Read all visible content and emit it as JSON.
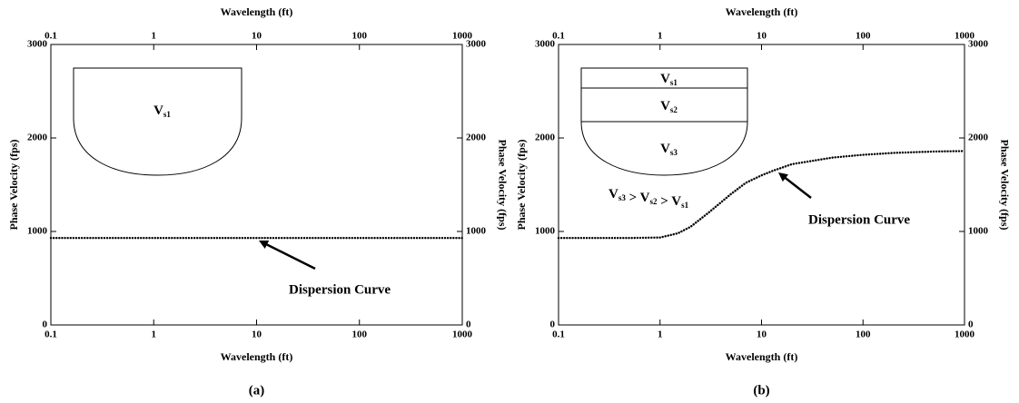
{
  "chart_data": [
    {
      "type": "line",
      "caption": "(a)",
      "xlabel": "Wavelength (ft)",
      "ylabel": "Phase Velocity (fps)",
      "y2label": "Phase Velocity (fps)",
      "log_x": true,
      "xlim": [
        0.1,
        1000
      ],
      "xticks": [
        0.1,
        1,
        10,
        100,
        1000
      ],
      "ylim": [
        0,
        3000
      ],
      "yticks": [
        0,
        1000,
        2000,
        3000
      ],
      "y2lim": [
        0,
        3000
      ],
      "y2ticks": [
        0,
        1000,
        2000,
        3000
      ],
      "color": "#000000",
      "x": [
        0.1,
        0.2,
        0.5,
        1,
        2,
        5,
        10,
        20,
        50,
        100,
        200,
        500,
        1000
      ],
      "values": [
        930,
        930,
        930,
        930,
        930,
        930,
        930,
        930,
        930,
        930,
        930,
        930,
        930
      ],
      "annotation": "Dispersion Curve",
      "layers": [
        {
          "text": "V",
          "sub": "s1"
        }
      ]
    },
    {
      "type": "line",
      "caption": "(b)",
      "xlabel": "Wavelength (ft)",
      "ylabel": "Phase Velocity (fps)",
      "y2label": "Phase Velocity (fps)",
      "log_x": true,
      "xlim": [
        0.1,
        1000
      ],
      "xticks": [
        0.1,
        1,
        10,
        100,
        1000
      ],
      "ylim": [
        0,
        3000
      ],
      "yticks": [
        0,
        1000,
        2000,
        3000
      ],
      "y2lim": [
        0,
        3000
      ],
      "y2ticks": [
        0,
        1000,
        2000,
        3000
      ],
      "color": "#000000",
      "x": [
        0.1,
        0.2,
        0.5,
        1,
        1.5,
        2,
        3,
        5,
        7,
        10,
        13,
        20,
        50,
        100,
        200,
        500,
        1000
      ],
      "values": [
        930,
        930,
        930,
        935,
        980,
        1050,
        1200,
        1400,
        1520,
        1600,
        1650,
        1720,
        1790,
        1820,
        1840,
        1855,
        1860
      ],
      "annotation": "Dispersion Curve",
      "layers": [
        {
          "text": "V",
          "sub": "s1"
        },
        {
          "text": "V",
          "sub": "s2"
        },
        {
          "text": "V",
          "sub": "s3"
        }
      ],
      "inequality": [
        {
          "text": "V",
          "sub": "s3"
        },
        {
          "text": " > V",
          "sub": "s2"
        },
        {
          "text": " > V",
          "sub": "s1"
        }
      ]
    }
  ]
}
